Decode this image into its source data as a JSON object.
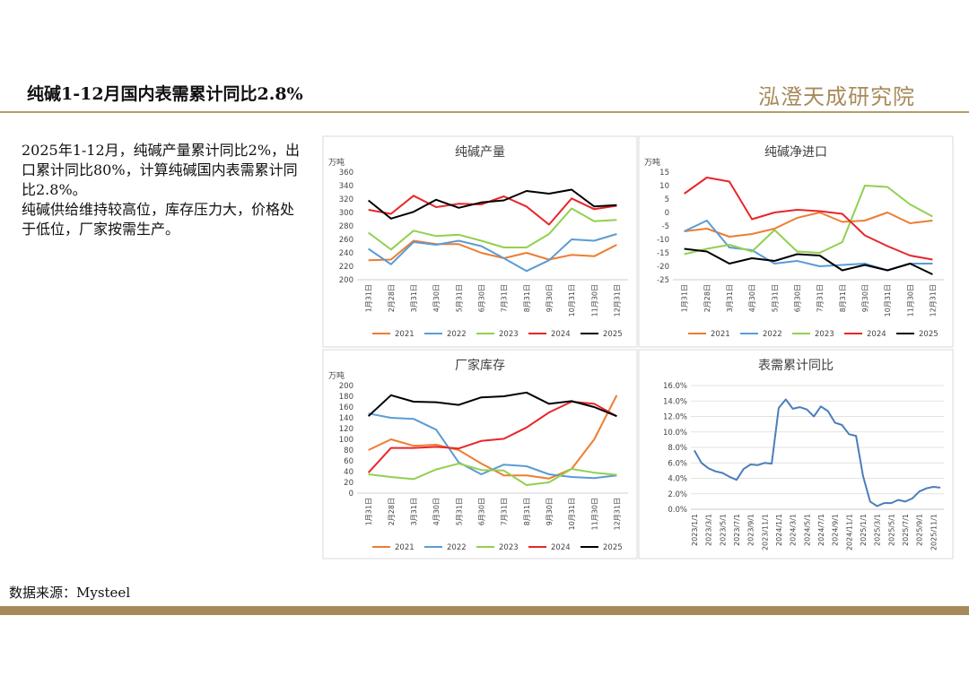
{
  "header": {
    "title": "纯碱1-12月国内表需累计同比2.8%",
    "logo": "泓澄天成研究院"
  },
  "text": {
    "paragraphs": [
      "2025年1-12月，纯碱产量累计同比2%，出口累计同比80%，计算纯碱国内表需累计同比2.8%。",
      "纯碱供给维持较高位，库存压力大，价格处于低位，厂家按需生产。"
    ]
  },
  "source": "数据来源：Mysteel",
  "chart_data": [
    {
      "type": "line",
      "title": "纯碱产量",
      "ylabel": "万吨",
      "categories": [
        "1月31日",
        "2月28日",
        "3月31日",
        "4月30日",
        "5月31日",
        "6月30日",
        "7月31日",
        "8月31日",
        "9月30日",
        "10月31日",
        "11月30日",
        "12月31日"
      ],
      "ylim": [
        200,
        360
      ],
      "yticks": [
        200,
        220,
        240,
        260,
        280,
        300,
        320,
        340,
        360
      ],
      "grid": false,
      "series": [
        {
          "name": "2021",
          "color": "#ed7d31",
          "values": [
            229,
            230,
            258,
            253,
            253,
            240,
            232,
            240,
            230,
            237,
            235,
            252
          ]
        },
        {
          "name": "2022",
          "color": "#5b9bd5",
          "values": [
            246,
            223,
            256,
            252,
            258,
            250,
            232,
            213,
            229,
            260,
            258,
            268
          ]
        },
        {
          "name": "2023",
          "color": "#92d050",
          "values": [
            270,
            245,
            273,
            265,
            267,
            258,
            248,
            248,
            268,
            306,
            287,
            289
          ]
        },
        {
          "name": "2024",
          "color": "#e8262a",
          "values": [
            304,
            298,
            325,
            308,
            313,
            312,
            324,
            309,
            282,
            321,
            305,
            310
          ]
        },
        {
          "name": "2025",
          "color": "#000000",
          "values": [
            318,
            291,
            301,
            319,
            307,
            315,
            318,
            332,
            328,
            334,
            309,
            311
          ]
        }
      ]
    },
    {
      "type": "line",
      "title": "纯碱净进口",
      "ylabel": "万吨",
      "categories": [
        "1月31日",
        "2月28日",
        "3月31日",
        "4月30日",
        "5月31日",
        "6月30日",
        "7月31日",
        "8月31日",
        "9月30日",
        "10月31日",
        "11月30日",
        "12月31日"
      ],
      "ylim": [
        -25,
        15
      ],
      "yticks": [
        -25,
        -20,
        -15,
        -10,
        -5,
        0,
        5,
        10,
        15
      ],
      "grid": false,
      "series": [
        {
          "name": "2021",
          "color": "#ed7d31",
          "values": [
            -7,
            -6,
            -9,
            -8,
            -6,
            -2,
            0,
            -3.5,
            -3,
            0,
            -4,
            -3
          ]
        },
        {
          "name": "2022",
          "color": "#5b9bd5",
          "values": [
            -7,
            -3,
            -13,
            -14,
            -19,
            -18,
            -20,
            -19.5,
            -19,
            -21.5,
            -19,
            -19
          ]
        },
        {
          "name": "2023",
          "color": "#92d050",
          "values": [
            -15.5,
            -13.5,
            -12,
            -14.5,
            -6.5,
            -14.5,
            -15,
            -11,
            10,
            9.5,
            3,
            -1.5
          ]
        },
        {
          "name": "2024",
          "color": "#e8262a",
          "values": [
            7,
            13,
            11.5,
            -2.5,
            0,
            1,
            0.5,
            -0.5,
            -8.5,
            -12.5,
            -16,
            -17.5
          ]
        },
        {
          "name": "2025",
          "color": "#000000",
          "values": [
            -13.5,
            -14.5,
            -19,
            -17,
            -18,
            -15.5,
            -16,
            -21.5,
            -19.5,
            -21.5,
            -19,
            -23
          ]
        }
      ]
    },
    {
      "type": "line",
      "title": "厂家库存",
      "ylabel": "万吨",
      "categories": [
        "1月31日",
        "2月28日",
        "3月31日",
        "4月30日",
        "5月31日",
        "6月30日",
        "7月31日",
        "8月31日",
        "9月30日",
        "10月31日",
        "11月30日",
        "12月31日"
      ],
      "ylim": [
        0,
        200
      ],
      "yticks": [
        0,
        20,
        40,
        60,
        80,
        100,
        120,
        140,
        160,
        180,
        200
      ],
      "grid": false,
      "series": [
        {
          "name": "2021",
          "color": "#ed7d31",
          "values": [
            80,
            100,
            88,
            90,
            80,
            55,
            33,
            33,
            27,
            45,
            100,
            182
          ]
        },
        {
          "name": "2022",
          "color": "#5b9bd5",
          "values": [
            148,
            140,
            138,
            118,
            57,
            35,
            53,
            50,
            35,
            30,
            28,
            33
          ]
        },
        {
          "name": "2023",
          "color": "#92d050",
          "values": [
            35,
            30,
            26,
            44,
            55,
            43,
            42,
            15,
            20,
            45,
            38,
            34
          ]
        },
        {
          "name": "2024",
          "color": "#e8262a",
          "values": [
            38,
            84,
            84,
            86,
            83,
            97,
            101,
            122,
            150,
            170,
            166,
            143
          ]
        },
        {
          "name": "2025",
          "color": "#000000",
          "values": [
            143,
            182,
            170,
            169,
            164,
            178,
            180,
            187,
            166,
            171,
            160,
            143
          ]
        }
      ]
    },
    {
      "type": "line",
      "title": "表需累计同比",
      "categories": [
        "2023/1/1",
        null,
        "2023/3/1",
        null,
        "2023/5/1",
        null,
        "2023/7/1",
        null,
        "2023/9/1",
        null,
        "2023/11/1",
        null,
        "2024/1/1",
        null,
        "2024/3/1",
        null,
        "2024/5/1",
        null,
        "2024/7/1",
        null,
        "2024/9/1",
        null,
        "2024/11/1",
        null,
        "2025/1/1",
        null,
        "2025/3/1",
        null,
        "2025/5/1",
        null,
        "2025/7/1",
        null,
        "2025/9/1",
        null,
        "2025/11/1",
        null
      ],
      "ylim": [
        0,
        16
      ],
      "grid": true,
      "yticks": [
        {
          "value": 0,
          "label": "0.0%"
        },
        {
          "value": 2,
          "label": "2.0%"
        },
        {
          "value": 4,
          "label": "4.0%"
        },
        {
          "value": 6,
          "label": "6.0%"
        },
        {
          "value": 8,
          "label": "8.0%"
        },
        {
          "value": 10,
          "label": "10.0%"
        },
        {
          "value": 12,
          "label": "12.0%"
        },
        {
          "value": 14,
          "label": "14.0%"
        },
        {
          "value": 16,
          "label": "16.0%"
        }
      ],
      "series": [
        {
          "color": "#4a7ebb",
          "values": [
            7.6,
            6.0,
            5.3,
            4.9,
            4.7,
            4.2,
            3.8,
            5.2,
            5.8,
            5.7,
            6.0,
            5.9,
            13.1,
            14.2,
            13.0,
            13.2,
            12.9,
            12.0,
            13.3,
            12.7,
            11.2,
            10.9,
            9.7,
            9.5,
            4.3,
            1.0,
            0.4,
            0.8,
            0.8,
            1.2,
            1.0,
            1.4,
            2.3,
            2.7,
            2.9,
            2.8
          ]
        }
      ]
    }
  ]
}
